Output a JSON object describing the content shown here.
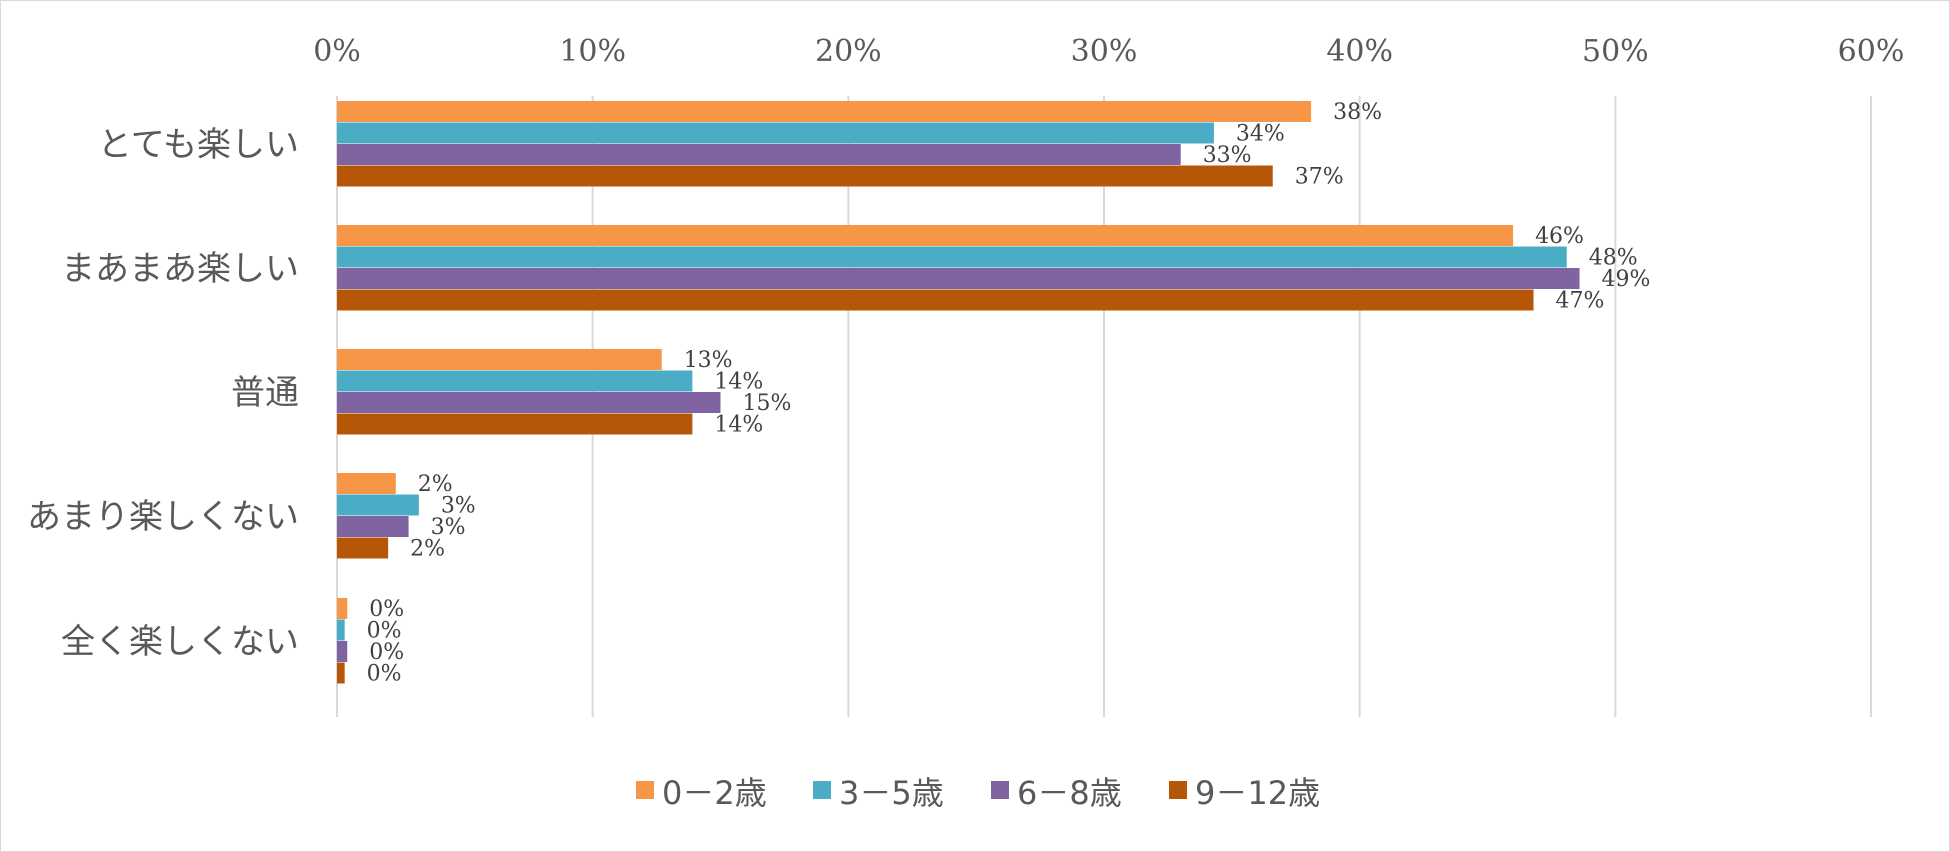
{
  "chart_data": {
    "type": "bar",
    "orientation": "horizontal",
    "title": "",
    "xlabel": "",
    "ylabel": "",
    "xlim": [
      0,
      60
    ],
    "x_ticks": [
      "0%",
      "10%",
      "20%",
      "30%",
      "40%",
      "50%",
      "60%"
    ],
    "x_axis_position": "top",
    "grid": true,
    "legend_position": "bottom",
    "categories": [
      "とても楽しい",
      "まあまあ楽しい",
      "普通",
      "あまり楽しくない",
      "全く楽しくない"
    ],
    "series": [
      {
        "name": "0－2歳",
        "color": "#F79646",
        "values": [
          38.1,
          46.0,
          12.7,
          2.3,
          0.4
        ],
        "labels": [
          "38%",
          "46%",
          "13%",
          "2%",
          "0%"
        ]
      },
      {
        "name": "3－5歳",
        "color": "#4BACC6",
        "values": [
          34.3,
          48.1,
          13.9,
          3.2,
          0.3
        ],
        "labels": [
          "34%",
          "48%",
          "14%",
          "3%",
          "0%"
        ]
      },
      {
        "name": "6－8歳",
        "color": "#8064A2",
        "values": [
          33.0,
          48.6,
          15.0,
          2.8,
          0.4
        ],
        "labels": [
          "33%",
          "49%",
          "15%",
          "3%",
          "0%"
        ]
      },
      {
        "name": "9－12歳",
        "color": "#B65708",
        "values": [
          36.6,
          46.8,
          13.9,
          2.0,
          0.3
        ],
        "labels": [
          "37%",
          "47%",
          "14%",
          "2%",
          "0%"
        ]
      }
    ]
  }
}
